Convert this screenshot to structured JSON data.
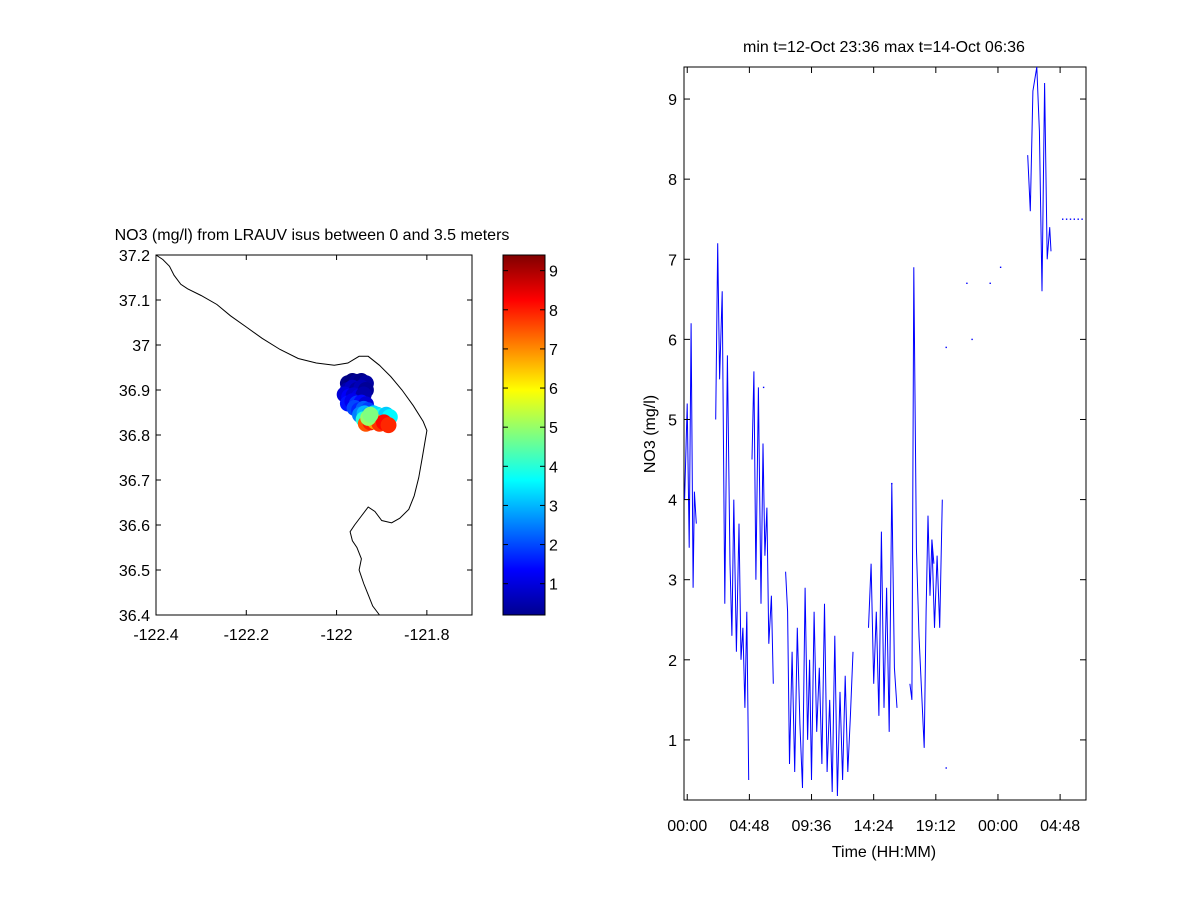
{
  "chart_data": [
    {
      "type": "scatter",
      "title": "NO3 (mg/l) from LRAUV isus between 0 and 3.5 meters",
      "xlabel": "",
      "ylabel": "",
      "xlim": [
        -122.4,
        -121.7
      ],
      "ylim": [
        36.4,
        37.2
      ],
      "x_ticks": [
        "-122.4",
        "-122.2",
        "-122",
        "-121.8"
      ],
      "y_ticks": [
        "37.2",
        "37.1",
        "37",
        "36.9",
        "36.8",
        "36.7",
        "36.6",
        "36.5",
        "36.4"
      ],
      "grid": false,
      "coastline": [
        [
          -122.4,
          37.2
        ],
        [
          -122.385,
          37.19
        ],
        [
          -122.37,
          37.175
        ],
        [
          -122.36,
          37.155
        ],
        [
          -122.345,
          37.135
        ],
        [
          -122.33,
          37.125
        ],
        [
          -122.3,
          37.11
        ],
        [
          -122.265,
          37.09
        ],
        [
          -122.235,
          37.065
        ],
        [
          -122.2,
          37.04
        ],
        [
          -122.165,
          37.015
        ],
        [
          -122.125,
          36.99
        ],
        [
          -122.085,
          36.97
        ],
        [
          -122.045,
          36.96
        ],
        [
          -122.005,
          36.955
        ],
        [
          -121.975,
          36.96
        ],
        [
          -121.95,
          36.975
        ],
        [
          -121.93,
          36.975
        ],
        [
          -121.905,
          36.955
        ],
        [
          -121.88,
          36.93
        ],
        [
          -121.855,
          36.9
        ],
        [
          -121.83,
          36.865
        ],
        [
          -121.808,
          36.83
        ],
        [
          -121.8,
          36.81
        ],
        [
          -121.805,
          36.78
        ],
        [
          -121.81,
          36.75
        ],
        [
          -121.818,
          36.705
        ],
        [
          -121.828,
          36.665
        ],
        [
          -121.84,
          36.635
        ],
        [
          -121.86,
          36.615
        ],
        [
          -121.878,
          36.605
        ],
        [
          -121.9,
          36.61
        ],
        [
          -121.915,
          36.63
        ],
        [
          -121.93,
          36.64
        ],
        [
          -121.945,
          36.62
        ],
        [
          -121.96,
          36.6
        ],
        [
          -121.97,
          36.585
        ],
        [
          -121.965,
          36.565
        ],
        [
          -121.955,
          36.55
        ],
        [
          -121.945,
          36.525
        ],
        [
          -121.95,
          36.5
        ],
        [
          -121.94,
          36.47
        ],
        [
          -121.93,
          36.445
        ],
        [
          -121.92,
          36.42
        ],
        [
          -121.905,
          36.4
        ]
      ],
      "points": [
        {
          "x": -121.975,
          "y": 36.915,
          "v": 0.3
        },
        {
          "x": -121.965,
          "y": 36.92,
          "v": 0.2
        },
        {
          "x": -121.955,
          "y": 36.918,
          "v": 0.4
        },
        {
          "x": -121.945,
          "y": 36.92,
          "v": 0.3
        },
        {
          "x": -121.935,
          "y": 36.915,
          "v": 0.5
        },
        {
          "x": -121.975,
          "y": 36.9,
          "v": 0.6
        },
        {
          "x": -121.965,
          "y": 36.905,
          "v": 0.8
        },
        {
          "x": -121.955,
          "y": 36.9,
          "v": 0.5
        },
        {
          "x": -121.945,
          "y": 36.905,
          "v": 0.7
        },
        {
          "x": -121.935,
          "y": 36.9,
          "v": 0.4
        },
        {
          "x": -121.982,
          "y": 36.89,
          "v": 1.0
        },
        {
          "x": -121.972,
          "y": 36.885,
          "v": 1.3
        },
        {
          "x": -121.962,
          "y": 36.888,
          "v": 0.9
        },
        {
          "x": -121.95,
          "y": 36.885,
          "v": 1.1
        },
        {
          "x": -121.94,
          "y": 36.89,
          "v": 0.6
        },
        {
          "x": -121.975,
          "y": 36.87,
          "v": 1.5
        },
        {
          "x": -121.965,
          "y": 36.875,
          "v": 1.2
        },
        {
          "x": -121.955,
          "y": 36.87,
          "v": 1.8
        },
        {
          "x": -121.945,
          "y": 36.872,
          "v": 1.4
        },
        {
          "x": -121.935,
          "y": 36.868,
          "v": 1.0
        },
        {
          "x": -121.96,
          "y": 36.86,
          "v": 2.0
        },
        {
          "x": -121.95,
          "y": 36.855,
          "v": 1.7
        },
        {
          "x": -121.94,
          "y": 36.858,
          "v": 2.2
        },
        {
          "x": -121.93,
          "y": 36.855,
          "v": 1.9
        },
        {
          "x": -121.948,
          "y": 36.845,
          "v": 2.5
        },
        {
          "x": -121.938,
          "y": 36.848,
          "v": 3.0
        },
        {
          "x": -121.928,
          "y": 36.845,
          "v": 2.8
        },
        {
          "x": -121.918,
          "y": 36.848,
          "v": 3.3
        },
        {
          "x": -121.94,
          "y": 36.835,
          "v": 4.0
        },
        {
          "x": -121.93,
          "y": 36.838,
          "v": 3.6
        },
        {
          "x": -121.92,
          "y": 36.84,
          "v": 3.9
        },
        {
          "x": -121.91,
          "y": 36.845,
          "v": 3.4
        },
        {
          "x": -121.9,
          "y": 36.842,
          "v": 3.8
        },
        {
          "x": -121.89,
          "y": 36.845,
          "v": 3.2
        },
        {
          "x": -121.882,
          "y": 36.84,
          "v": 3.6
        },
        {
          "x": -121.935,
          "y": 36.825,
          "v": 7.5
        },
        {
          "x": -121.925,
          "y": 36.828,
          "v": 8.0
        },
        {
          "x": -121.915,
          "y": 36.83,
          "v": 6.8
        },
        {
          "x": -121.905,
          "y": 36.825,
          "v": 7.8
        },
        {
          "x": -121.895,
          "y": 36.828,
          "v": 8.2
        },
        {
          "x": -121.885,
          "y": 36.822,
          "v": 7.9
        },
        {
          "x": -121.93,
          "y": 36.838,
          "v": 5.0
        },
        {
          "x": -121.925,
          "y": 36.845,
          "v": 4.8
        }
      ],
      "colorbar": {
        "min": 0.2,
        "max": 9.4,
        "ticks": [
          "1",
          "2",
          "3",
          "4",
          "5",
          "6",
          "7",
          "8",
          "9"
        ],
        "colormap": "jet"
      }
    },
    {
      "type": "line",
      "title": "min t=12-Oct 23:36 max t=14-Oct 06:36",
      "xlabel": "Time (HH:MM)",
      "ylabel": "NO3 (mg/l)",
      "xlim": [
        -0.25,
        30.8
      ],
      "ylim": [
        0.25,
        9.4
      ],
      "x_ticks": [
        "00:00",
        "04:48",
        "09:36",
        "14:24",
        "19:12",
        "00:00",
        "04:48"
      ],
      "y_ticks": [
        "1",
        "2",
        "3",
        "4",
        "5",
        "6",
        "7",
        "8",
        "9"
      ],
      "grid": false,
      "color": "#0000ff",
      "series": [
        {
          "x": [
            -0.2,
            0,
            0.15,
            0.3,
            0.45,
            0.55,
            0.7
          ],
          "y": [
            4.0,
            5.2,
            3.4,
            6.2,
            2.9,
            4.1,
            3.7
          ]
        },
        {
          "x": [
            2.2,
            2.35,
            2.5,
            2.7,
            2.9,
            3.1,
            3.3,
            3.45,
            3.6,
            3.8,
            4.0,
            4.15,
            4.3,
            4.45,
            4.6,
            4.75
          ],
          "y": [
            5.0,
            7.2,
            5.5,
            6.6,
            2.7,
            5.8,
            3.2,
            2.3,
            4.0,
            2.1,
            3.7,
            2.0,
            2.4,
            1.4,
            2.6,
            0.5
          ]
        },
        {
          "x": [
            5.0,
            5.15,
            5.3,
            5.5,
            5.7,
            5.85,
            6.0,
            6.15,
            6.3,
            6.5,
            6.65
          ],
          "y": [
            4.5,
            5.6,
            3.0,
            5.4,
            2.7,
            4.7,
            3.3,
            3.9,
            2.2,
            2.8,
            1.7
          ]
        },
        {
          "x": [
            7.6,
            7.75,
            7.9,
            8.1,
            8.3,
            8.5,
            8.7,
            8.9,
            9.1,
            9.3,
            9.45,
            9.6,
            9.8,
            10.0,
            10.2,
            10.4,
            10.6,
            10.8,
            11.0,
            11.2,
            11.4,
            11.6,
            11.8,
            12.0,
            12.2,
            12.4,
            12.6,
            12.8
          ],
          "y": [
            3.1,
            2.6,
            0.7,
            2.1,
            0.6,
            2.4,
            1.2,
            0.4,
            2.9,
            1.0,
            2.0,
            0.5,
            2.6,
            1.1,
            1.9,
            0.7,
            2.7,
            0.6,
            1.5,
            0.35,
            2.3,
            0.3,
            1.6,
            0.5,
            1.8,
            0.6,
            1.3,
            2.1
          ]
        },
        {
          "x": [
            14.0,
            14.2,
            14.4,
            14.6,
            14.8,
            15.0,
            15.2,
            15.4,
            15.6,
            15.8,
            16.0,
            16.2
          ],
          "y": [
            2.4,
            3.2,
            1.7,
            2.6,
            1.3,
            3.6,
            1.4,
            2.9,
            1.1,
            4.2,
            1.9,
            1.4
          ]
        },
        {
          "x": [
            17.2,
            17.35,
            17.5,
            17.7,
            17.9,
            18.1,
            18.3,
            18.45,
            18.6,
            18.75,
            18.9,
            19.05
          ],
          "y": [
            1.7,
            1.5,
            6.9,
            3.4,
            2.3,
            1.6,
            0.9,
            2.6,
            3.8,
            2.8,
            3.5,
            3.2
          ]
        },
        {
          "x": [
            18.9,
            19.1,
            19.3,
            19.5,
            19.7
          ],
          "y": [
            3.5,
            2.4,
            3.3,
            2.4,
            4.0
          ]
        },
        {
          "x": [
            26.3,
            26.5,
            26.7,
            27.0,
            27.2,
            27.4,
            27.6,
            27.8,
            28.0,
            28.1
          ],
          "y": [
            8.3,
            7.6,
            9.1,
            9.4,
            8.6,
            6.6,
            9.2,
            7.0,
            7.4,
            7.1
          ]
        }
      ],
      "dots": [
        {
          "x": 5.9,
          "y": 5.4
        },
        {
          "x": 15.8,
          "y": 4.2
        },
        {
          "x": 20.0,
          "y": 5.9
        },
        {
          "x": 21.6,
          "y": 6.7
        },
        {
          "x": 22.0,
          "y": 6.0
        },
        {
          "x": 23.4,
          "y": 6.7
        },
        {
          "x": 24.2,
          "y": 6.9
        },
        {
          "x": 20.0,
          "y": 0.65
        },
        {
          "x": 29.0,
          "y": 7.5
        },
        {
          "x": 29.3,
          "y": 7.5
        },
        {
          "x": 29.6,
          "y": 7.5
        },
        {
          "x": 29.9,
          "y": 7.5
        },
        {
          "x": 30.2,
          "y": 7.5
        },
        {
          "x": 30.5,
          "y": 7.5
        }
      ]
    }
  ]
}
